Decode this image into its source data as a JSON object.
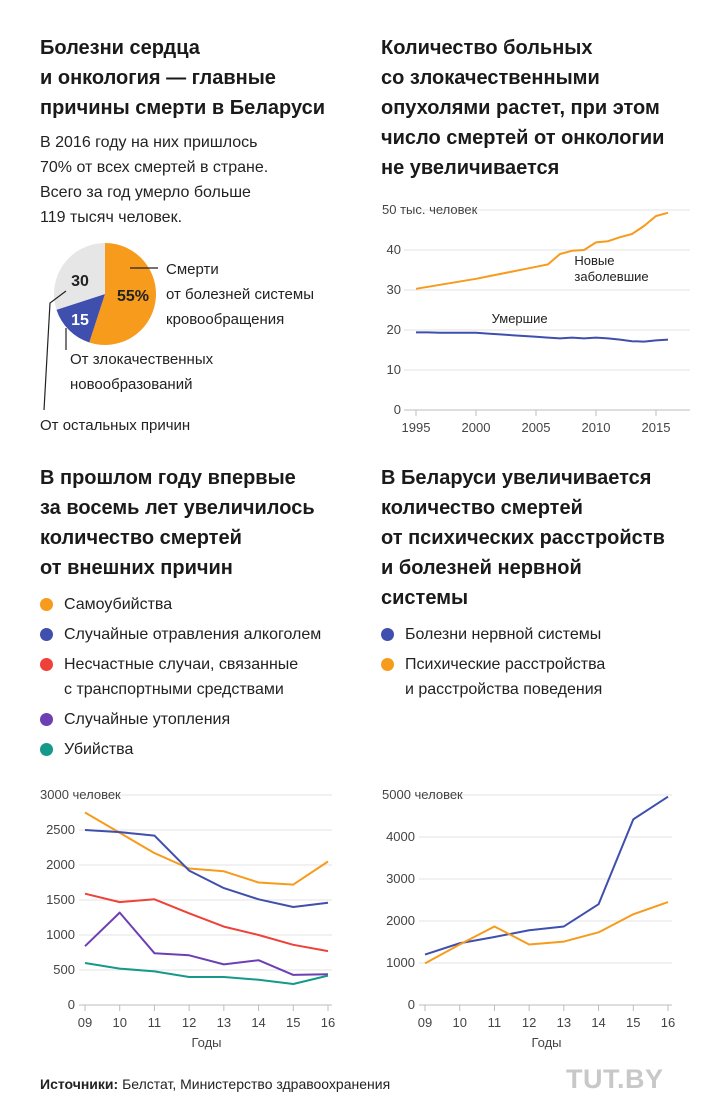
{
  "panels": {
    "heart": {
      "title": "Болезни сердца\nи онкология — главные\nпричины смерти в Беларуси",
      "lead": "В 2016 году на них пришлось\n70% от всех смертей в стране.\nВсего за год умерло больше\n119 тысяч человек."
    },
    "cancer": {
      "title": "Количество больных\nсо злокачественными\nопухолями растет, при этом\nчисло смертей от онкологии\nне увеличивается"
    },
    "external": {
      "title": "В прошлом году впервые\nза восемь лет увеличилось\nколичество смертей\nот внешних причин"
    },
    "mental": {
      "title": "В Беларуси увеличивается\nколичество смертей\nот психических расстройств\nи болезней нервной\nсистемы"
    }
  },
  "colors": {
    "orange": "#f79b1c",
    "blue": "#3f4fae",
    "red": "#ee4138",
    "purple": "#6d3fb3",
    "teal": "#14998a",
    "gray": "#e6e6e6"
  },
  "footer": {
    "sources_label": "Источники:",
    "sources_text": "Белстат, Министерство здравоохранения"
  },
  "logo": "TUT.BY",
  "chart_data": [
    {
      "type": "pie",
      "slices": [
        {
          "label": "Смерти\nот болезней системы\nкровообращения",
          "value": 55,
          "value_label": "55%",
          "color": "#f79b1c"
        },
        {
          "label": "От злокачественных\nновообразований",
          "value": 15,
          "value_label": "15",
          "color": "#3f4fae"
        },
        {
          "label": "От остальных причин",
          "value": 30,
          "value_label": "30",
          "color": "#e6e6e6"
        }
      ]
    },
    {
      "type": "line",
      "ylim": [
        0,
        50
      ],
      "yticks": [
        0,
        10,
        20,
        30,
        40,
        50
      ],
      "ytick_labels": [
        "0",
        "10",
        "20",
        "30",
        "40",
        "50 тыс. человек"
      ],
      "xlim": [
        1994,
        2017
      ],
      "xticks": [
        1995,
        2000,
        2005,
        2010,
        2015
      ],
      "series": [
        {
          "name": "Новые\nзаболевшие",
          "color": "#f79b1c",
          "x": [
            1995,
            1996,
            1997,
            1998,
            1999,
            2000,
            2001,
            2002,
            2003,
            2004,
            2005,
            2006,
            2007,
            2008,
            2009,
            2010,
            2011,
            2012,
            2013,
            2014,
            2015,
            2016
          ],
          "y": [
            30.3,
            30.8,
            31.3,
            31.8,
            32.3,
            32.8,
            33.4,
            34.0,
            34.6,
            35.2,
            35.8,
            36.4,
            39.0,
            39.8,
            40.0,
            41.9,
            42.2,
            43.2,
            44.0,
            46.0,
            48.5,
            49.3
          ]
        },
        {
          "name": "Умершие",
          "color": "#3f4fae",
          "x": [
            1995,
            1996,
            1997,
            1998,
            1999,
            2000,
            2001,
            2002,
            2003,
            2004,
            2005,
            2006,
            2007,
            2008,
            2009,
            2010,
            2011,
            2012,
            2013,
            2014,
            2015,
            2016
          ],
          "y": [
            19.4,
            19.4,
            19.3,
            19.3,
            19.3,
            19.3,
            19.1,
            18.9,
            18.7,
            18.5,
            18.3,
            18.1,
            17.9,
            18.1,
            17.9,
            18.1,
            17.9,
            17.6,
            17.2,
            17.1,
            17.4,
            17.6
          ]
        }
      ]
    },
    {
      "type": "line",
      "ylim": [
        0,
        3000
      ],
      "yticks": [
        0,
        500,
        1000,
        1500,
        2000,
        2500,
        3000
      ],
      "ytick_labels": [
        "0",
        "500",
        "1000",
        "1500",
        "2000",
        "2500",
        "3000 человек"
      ],
      "categories": [
        "09",
        "10",
        "11",
        "12",
        "13",
        "14",
        "15",
        "16"
      ],
      "xlabel": "Годы",
      "series": [
        {
          "name": "Самоубийства",
          "color": "#f79b1c",
          "values": [
            2750,
            2460,
            2170,
            1950,
            1910,
            1750,
            1720,
            2050
          ]
        },
        {
          "name": "Случайные отравления алкоголем",
          "color": "#3f4fae",
          "values": [
            2500,
            2470,
            2420,
            1920,
            1670,
            1510,
            1400,
            1460
          ]
        },
        {
          "name": "Несчастные случаи, связанные\nс транспортными средствами",
          "color": "#ee4138",
          "values": [
            1590,
            1470,
            1510,
            1310,
            1120,
            1000,
            860,
            770
          ]
        },
        {
          "name": "Случайные утопления",
          "color": "#6d3fb3",
          "values": [
            840,
            1320,
            740,
            710,
            580,
            640,
            430,
            440
          ]
        },
        {
          "name": "Убийства",
          "color": "#14998a",
          "values": [
            600,
            520,
            480,
            400,
            400,
            360,
            300,
            420
          ]
        }
      ]
    },
    {
      "type": "line",
      "ylim": [
        0,
        5000
      ],
      "yticks": [
        0,
        1000,
        2000,
        3000,
        4000,
        5000
      ],
      "ytick_labels": [
        "0",
        "1000",
        "2000",
        "3000",
        "4000",
        "5000 человек"
      ],
      "categories": [
        "09",
        "10",
        "11",
        "12",
        "13",
        "14",
        "15",
        "16"
      ],
      "xlabel": "Годы",
      "series": [
        {
          "name": "Болезни нервной системы",
          "color": "#3f4fae",
          "values": [
            1200,
            1470,
            1620,
            1780,
            1870,
            2400,
            4420,
            4960
          ]
        },
        {
          "name": "Психические расстройства\nи расстройства поведения",
          "color": "#f79b1c",
          "values": [
            990,
            1440,
            1870,
            1440,
            1510,
            1730,
            2160,
            2450
          ]
        }
      ]
    }
  ]
}
